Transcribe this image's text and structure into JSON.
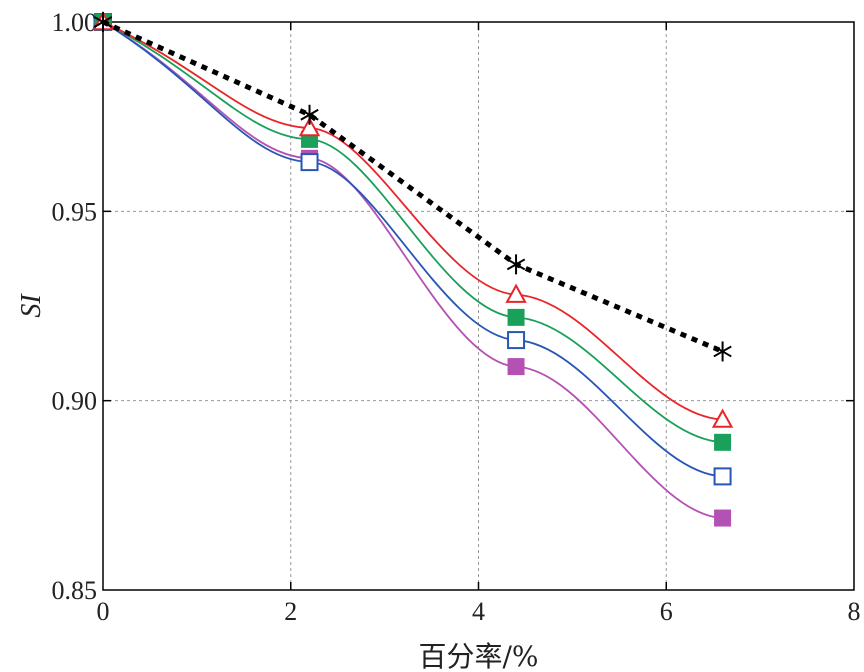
{
  "chart_data": {
    "type": "line",
    "title": "",
    "xlabel": "百分率/%",
    "ylabel": "SI",
    "xlim": [
      0,
      8
    ],
    "ylim": [
      0.85,
      1.0
    ],
    "x_ticks": [
      0,
      2,
      4,
      6,
      8
    ],
    "x_tick_labels": [
      "0",
      "2",
      "4",
      "6",
      "8"
    ],
    "y_ticks": [
      0.85,
      0.9,
      0.95,
      1.0
    ],
    "y_tick_labels": [
      "0.85",
      "0.90",
      "0.95",
      "1.00"
    ],
    "grid": true,
    "x": [
      0,
      2.2,
      4.4,
      6.6
    ],
    "series": [
      {
        "values": [
          1.0,
          0.9755,
          0.936,
          0.913
        ],
        "color": "#000000",
        "marker": "asterisk",
        "line": "dotted-thick"
      },
      {
        "values": [
          1.0,
          0.972,
          0.928,
          0.895
        ],
        "color": "#e8262a",
        "marker": "triangle-open",
        "line": "solid"
      },
      {
        "values": [
          1.0,
          0.969,
          0.922,
          0.889
        ],
        "color": "#1aa05a",
        "marker": "square-filled",
        "line": "solid"
      },
      {
        "values": [
          1.0,
          0.963,
          0.916,
          0.88
        ],
        "color": "#2856b6",
        "marker": "square-open",
        "line": "solid"
      },
      {
        "values": [
          1.0,
          0.964,
          0.909,
          0.869
        ],
        "color": "#b452b4",
        "marker": "square-filled",
        "line": "solid"
      }
    ]
  }
}
